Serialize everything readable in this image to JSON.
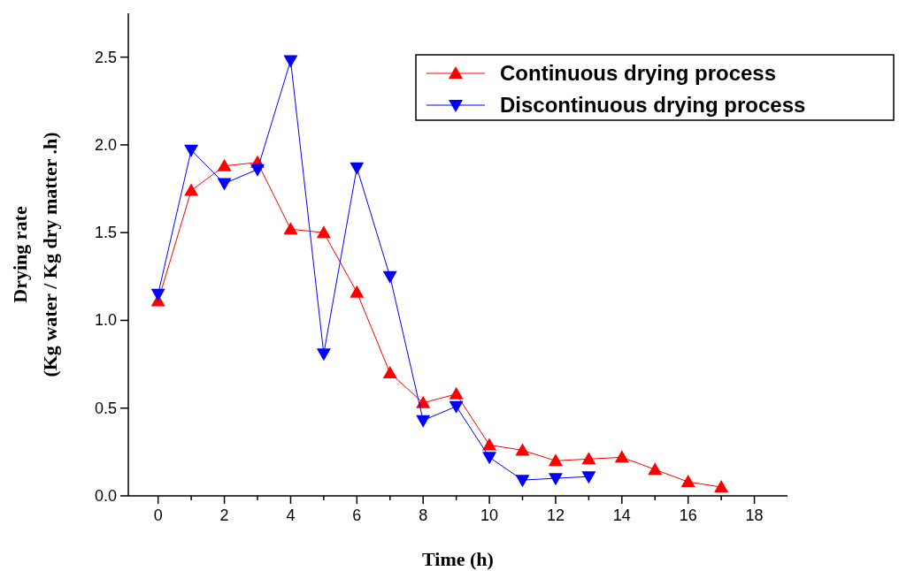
{
  "chart_data": {
    "type": "line",
    "xlabel": "Time (h)",
    "ylabel": "Drying rate\n(Kg water / Kg dry matter .h)",
    "xlim": [
      -0.9,
      19
    ],
    "ylim": [
      0,
      2.75
    ],
    "xticks": [
      0,
      {
        "value": 1,
        "label": null
      },
      2,
      {
        "value": 3,
        "label": null
      },
      4,
      {
        "value": 5,
        "label": null
      },
      6,
      {
        "value": 7,
        "label": null
      },
      8,
      {
        "value": 9,
        "label": null
      },
      10,
      {
        "value": 11,
        "label": null
      },
      12,
      {
        "value": 13,
        "label": null
      },
      14,
      {
        "value": 15,
        "label": null
      },
      16,
      {
        "value": 17,
        "label": null
      },
      18
    ],
    "yticks": [
      {
        "value": 0,
        "label": "0.0"
      },
      {
        "value": 0.5,
        "label": "0.5"
      },
      {
        "value": 1,
        "label": "1.0"
      },
      {
        "value": 1.5,
        "label": "1.5"
      },
      {
        "value": 2,
        "label": "2.0"
      },
      {
        "value": 2.5,
        "label": "2.5"
      }
    ],
    "legend": "top right",
    "grid": false,
    "series": [
      {
        "name": "Continuous drying process",
        "color": "#ff0000",
        "marker": "triangle",
        "x": [
          0,
          1,
          2,
          3,
          4,
          5,
          6,
          7,
          8,
          9,
          10,
          11,
          12,
          13,
          14,
          15,
          16,
          17
        ],
        "values": [
          1.11,
          1.74,
          1.88,
          1.9,
          1.52,
          1.5,
          1.16,
          0.7,
          0.53,
          0.58,
          0.29,
          0.26,
          0.2,
          0.21,
          0.22,
          0.15,
          0.08,
          0.05
        ]
      },
      {
        "name": "Discontinuous drying process",
        "color": "#0000ff",
        "marker": "triangle-down",
        "x": [
          0,
          1,
          2,
          3,
          4,
          5,
          6,
          7,
          8,
          9,
          10,
          11,
          12,
          13
        ],
        "values": [
          1.15,
          1.97,
          1.78,
          1.86,
          2.48,
          0.81,
          1.87,
          1.25,
          0.43,
          0.51,
          0.22,
          0.09,
          0.1,
          0.11
        ]
      }
    ]
  }
}
